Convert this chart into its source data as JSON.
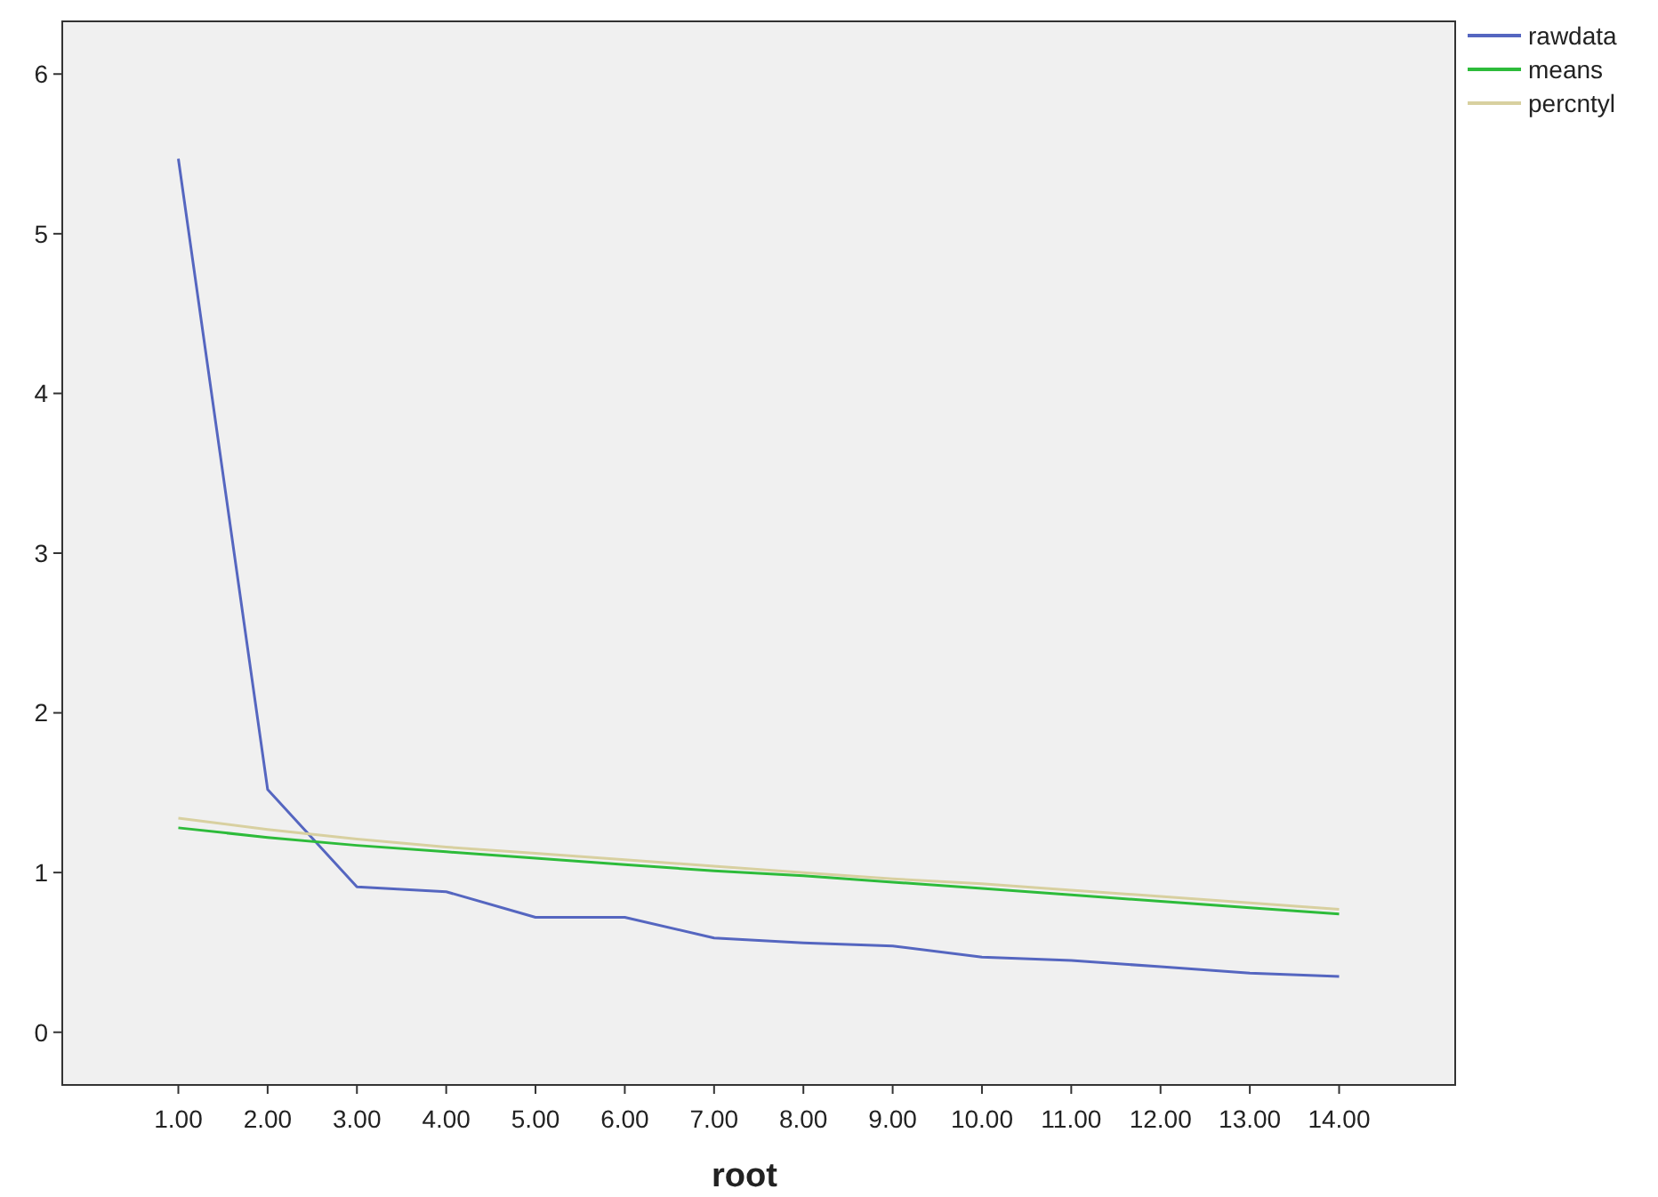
{
  "chart_data": {
    "type": "line",
    "xlabel": "root",
    "categories": [
      "1.00",
      "2.00",
      "3.00",
      "4.00",
      "5.00",
      "6.00",
      "7.00",
      "8.00",
      "9.00",
      "10.00",
      "11.00",
      "12.00",
      "13.00",
      "14.00"
    ],
    "series": [
      {
        "name": "rawdata",
        "color": "#5566c0",
        "values": [
          5.47,
          1.52,
          0.91,
          0.88,
          0.72,
          0.72,
          0.59,
          0.56,
          0.54,
          0.47,
          0.45,
          0.41,
          0.37,
          0.35
        ]
      },
      {
        "name": "means",
        "color": "#2dbb3a",
        "values": [
          1.28,
          1.22,
          1.17,
          1.13,
          1.09,
          1.05,
          1.01,
          0.98,
          0.94,
          0.9,
          0.86,
          0.82,
          0.78,
          0.74
        ]
      },
      {
        "name": "percntyl",
        "color": "#d8d0a0",
        "values": [
          1.34,
          1.27,
          1.21,
          1.16,
          1.12,
          1.08,
          1.04,
          1.0,
          0.96,
          0.93,
          0.89,
          0.85,
          0.81,
          0.77
        ]
      }
    ],
    "ylim": [
      -0.33,
      6.33
    ],
    "yticks": [
      0,
      1,
      2,
      3,
      4,
      5,
      6
    ],
    "grid": false,
    "legend": "top right",
    "marker": "none",
    "line_style": "solid"
  }
}
